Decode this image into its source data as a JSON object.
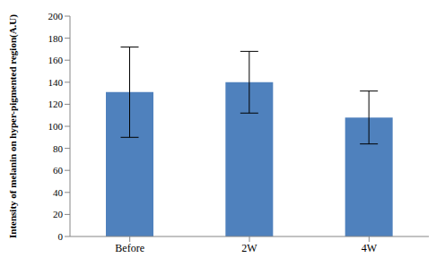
{
  "chart_data": {
    "type": "bar",
    "categories": [
      "Before",
      "2W",
      "4W"
    ],
    "values": [
      131,
      140,
      108
    ],
    "errors": [
      41,
      28,
      24
    ],
    "color": "#4f81bd",
    "y_label": "Intensity of melanin on hyper-pigmented region(A.U)",
    "ylim": [
      0,
      200
    ],
    "yticks": [
      0,
      20,
      40,
      60,
      80,
      100,
      120,
      140,
      160,
      180,
      200
    ],
    "grid": false
  }
}
